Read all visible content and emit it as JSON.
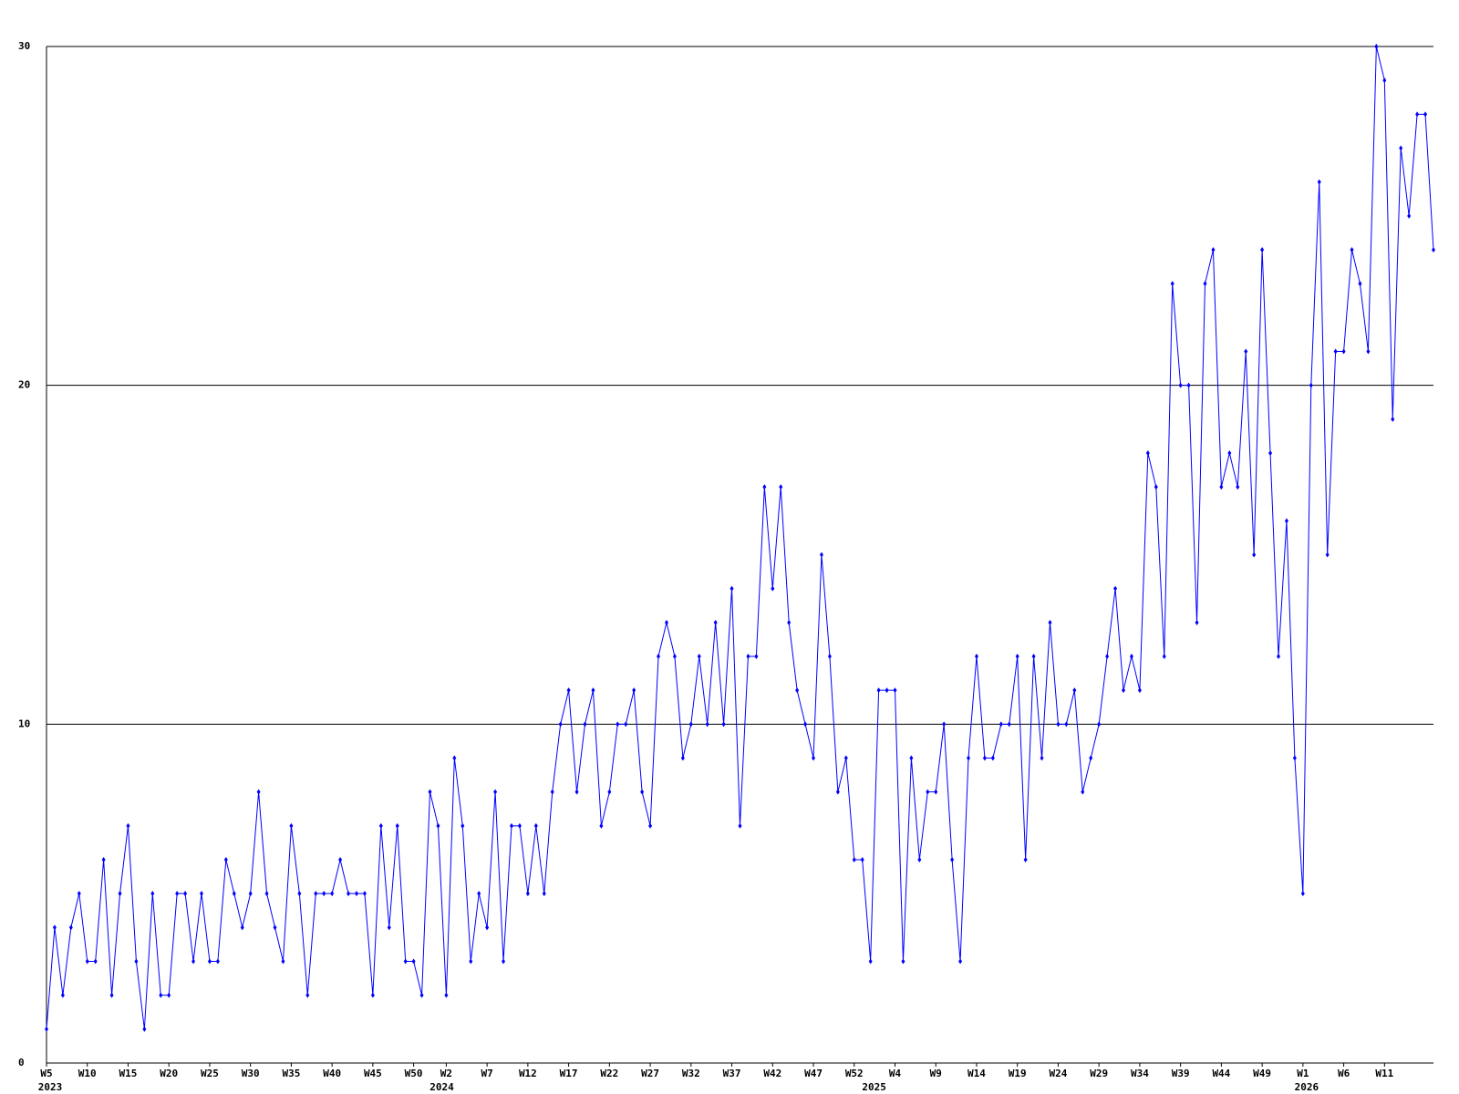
{
  "chart_data": {
    "type": "line",
    "categories": [
      "W5",
      null,
      null,
      null,
      null,
      "W10",
      null,
      null,
      null,
      null,
      "W15",
      null,
      null,
      null,
      null,
      "W20",
      null,
      null,
      null,
      null,
      "W25",
      null,
      null,
      null,
      null,
      "W30",
      null,
      null,
      null,
      null,
      "W35",
      null,
      null,
      null,
      null,
      "W40",
      null,
      null,
      null,
      null,
      "W45",
      null,
      null,
      null,
      null,
      "W50",
      null,
      null,
      null,
      "W2",
      null,
      null,
      null,
      null,
      "W7",
      null,
      null,
      null,
      null,
      "W12",
      null,
      null,
      null,
      null,
      "W17",
      null,
      null,
      null,
      null,
      "W22",
      null,
      null,
      null,
      null,
      "W27",
      null,
      null,
      null,
      null,
      "W32",
      null,
      null,
      null,
      null,
      "W37",
      null,
      null,
      null,
      null,
      "W42",
      null,
      null,
      null,
      null,
      "W47",
      null,
      null,
      null,
      null,
      "W52",
      null,
      null,
      null,
      null,
      "W4",
      null,
      null,
      null,
      null,
      "W9",
      null,
      null,
      null,
      null,
      "W14",
      null,
      null,
      null,
      null,
      "W19",
      null,
      null,
      null,
      null,
      "W24",
      null,
      null,
      null,
      null,
      "W29",
      null,
      null,
      null,
      null,
      "W34",
      null,
      null,
      null,
      null,
      "W39",
      null,
      null,
      null,
      null,
      "W44",
      null,
      null,
      null,
      null,
      "W49",
      null,
      null,
      null,
      null,
      "W1",
      null,
      null,
      null,
      null,
      "W6",
      null,
      null,
      null,
      null,
      "W11",
      null,
      null,
      null,
      null,
      null,
      null
    ],
    "years": [
      "2023",
      null,
      null,
      null,
      null,
      null,
      null,
      null,
      null,
      null,
      null,
      null,
      null,
      null,
      null,
      null,
      null,
      null,
      null,
      null,
      null,
      null,
      null,
      null,
      null,
      null,
      null,
      null,
      null,
      null,
      null,
      null,
      null,
      null,
      null,
      null,
      null,
      null,
      null,
      null,
      null,
      null,
      null,
      null,
      null,
      null,
      null,
      null,
      "2024",
      null,
      null,
      null,
      null,
      null,
      null,
      null,
      null,
      null,
      null,
      null,
      null,
      null,
      null,
      null,
      null,
      null,
      null,
      null,
      null,
      null,
      null,
      null,
      null,
      null,
      null,
      null,
      null,
      null,
      null,
      null,
      null,
      null,
      null,
      null,
      null,
      null,
      null,
      null,
      null,
      null,
      null,
      null,
      null,
      null,
      null,
      null,
      null,
      null,
      null,
      null,
      null,
      "2025",
      null,
      null,
      null,
      null,
      null,
      null,
      null,
      null,
      null,
      null,
      null,
      null,
      null,
      null,
      null,
      null,
      null,
      null,
      null,
      null,
      null,
      null,
      null,
      null,
      null,
      null,
      null,
      null,
      null,
      null,
      null,
      null,
      null,
      null,
      null,
      null,
      null,
      null,
      null,
      null,
      null,
      null,
      null,
      null,
      null,
      null,
      null,
      null,
      null,
      null,
      null,
      null,
      "2026",
      null,
      null,
      null,
      null,
      null,
      null,
      null,
      null,
      null,
      null,
      null,
      null,
      null,
      null,
      null,
      null
    ],
    "values": [
      1,
      4,
      2,
      4,
      5,
      3,
      3,
      6,
      2,
      5,
      7,
      3,
      1,
      5,
      2,
      2,
      5,
      5,
      3,
      5,
      3,
      3,
      6,
      5,
      4,
      5,
      8,
      5,
      4,
      3,
      7,
      5,
      2,
      5,
      5,
      5,
      6,
      5,
      5,
      5,
      2,
      7,
      4,
      7,
      3,
      3,
      2,
      8,
      7,
      2,
      9,
      7,
      3,
      5,
      4,
      8,
      3,
      7,
      7,
      5,
      7,
      5,
      8,
      10,
      11,
      8,
      10,
      11,
      7,
      8,
      10,
      10,
      11,
      8,
      7,
      12,
      13,
      12,
      9,
      10,
      12,
      10,
      13,
      10,
      14,
      7,
      12,
      12,
      17,
      14,
      17,
      13,
      11,
      10,
      9,
      15,
      12,
      8,
      9,
      6,
      6,
      3,
      11,
      11,
      11,
      3,
      9,
      6,
      8,
      8,
      10,
      6,
      3,
      9,
      12,
      9,
      9,
      10,
      10,
      12,
      6,
      12,
      9,
      13,
      10,
      10,
      11,
      8,
      9,
      10,
      12,
      14,
      11,
      12,
      11,
      18,
      17,
      12,
      23,
      20,
      20,
      13,
      23,
      24,
      17,
      18,
      17,
      21,
      15,
      24,
      18,
      12,
      16,
      9,
      5,
      20,
      26,
      15,
      21,
      21,
      24,
      23,
      21,
      30,
      29,
      19,
      27,
      25,
      28,
      28,
      24
    ],
    "color": "#0000ff",
    "ylim": [
      0,
      30
    ],
    "yticks": [
      0,
      10,
      20,
      30
    ],
    "grid": true
  }
}
